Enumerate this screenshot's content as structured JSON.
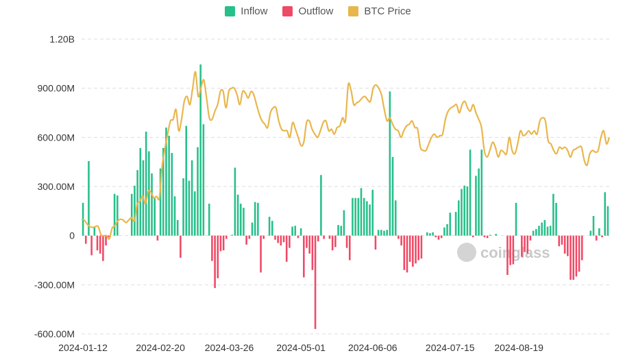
{
  "legend": [
    {
      "name": "Inflow",
      "color": "#27c08a"
    },
    {
      "name": "Outflow",
      "color": "#ef4a67"
    },
    {
      "name": "BTC Price",
      "color": "#e9b64c"
    }
  ],
  "watermark": "coinglass",
  "chart_data": {
    "type": "bar",
    "y_tick_labels": [
      "-600.00M",
      "-300.00M",
      "0",
      "300.00M",
      "600.00M",
      "900.00M",
      "1.20B"
    ],
    "ylim": [
      -600000000,
      1200000000
    ],
    "x_tick_labels": [
      "2024-01-12",
      "2024-02-20",
      "2024-03-26",
      "2024-05-01",
      "2024-06-06",
      "2024-07-15",
      "2024-08-19"
    ],
    "x_tick_index": [
      0,
      27,
      51,
      76,
      101,
      128,
      152
    ],
    "colors": {
      "inflow": "#27c08a",
      "outflow": "#ef4a67",
      "price": "#e9b64c",
      "grid": "#dddddd"
    },
    "grid": true,
    "legend_position": "top-center",
    "flow_values_millions": [
      200,
      -50,
      455,
      -120,
      50,
      -90,
      -110,
      -155,
      -60,
      -10,
      0,
      255,
      245,
      0,
      0,
      0,
      0,
      255,
      305,
      400,
      535,
      460,
      635,
      515,
      380,
      235,
      -30,
      410,
      535,
      660,
      610,
      505,
      240,
      95,
      -135,
      350,
      670,
      335,
      460,
      270,
      540,
      1045,
      680,
      0,
      195,
      -155,
      -320,
      -260,
      -95,
      -90,
      -20,
      0,
      5,
      415,
      250,
      195,
      170,
      -55,
      -20,
      80,
      205,
      200,
      -225,
      -20,
      0,
      115,
      90,
      -25,
      -45,
      -60,
      -40,
      -160,
      -75,
      55,
      60,
      -15,
      45,
      -255,
      -75,
      -110,
      -210,
      -570,
      -35,
      370,
      -20,
      0,
      -20,
      -90,
      -70,
      65,
      60,
      155,
      -75,
      -150,
      230,
      230,
      230,
      290,
      230,
      210,
      190,
      280,
      -85,
      35,
      35,
      30,
      35,
      880,
      480,
      215,
      -20,
      -60,
      -210,
      -225,
      -160,
      -190,
      -170,
      -150,
      -140,
      0,
      20,
      15,
      20,
      -10,
      -25,
      -15,
      50,
      70,
      140,
      0,
      145,
      215,
      285,
      305,
      300,
      525,
      -10,
      365,
      410,
      525,
      -10,
      -15,
      5,
      0,
      10,
      0,
      0,
      0,
      -240,
      -180,
      -175,
      200,
      0,
      -130,
      -100,
      -110,
      -30,
      30,
      40,
      60,
      80,
      95,
      55,
      60,
      255,
      200,
      -65,
      -55,
      -110,
      -125,
      -270,
      -270,
      -250,
      -220,
      -150,
      0,
      0,
      30,
      120,
      -30,
      45,
      -10,
      265,
      180
    ],
    "price_values_millions": [
      100,
      95,
      70,
      55,
      50,
      55,
      55,
      5,
      0,
      0,
      -20,
      45,
      60,
      90,
      100,
      95,
      80,
      95,
      110,
      90,
      190,
      210,
      240,
      195,
      270,
      265,
      230,
      240,
      230,
      420,
      530,
      620,
      700,
      710,
      770,
      640,
      710,
      820,
      850,
      800,
      900,
      1000,
      850,
      905,
      950,
      840,
      720,
      710,
      760,
      800,
      880,
      880,
      780,
      880,
      900,
      900,
      860,
      800,
      880,
      870,
      840,
      880,
      860,
      800,
      740,
      700,
      680,
      660,
      750,
      780,
      780,
      700,
      650,
      640,
      640,
      600,
      690,
      650,
      600,
      550,
      570,
      690,
      700,
      650,
      620,
      600,
      640,
      690,
      700,
      640,
      650,
      620,
      660,
      670,
      720,
      700,
      920,
      890,
      800,
      810,
      820,
      840,
      850,
      830,
      820,
      900,
      920,
      900,
      860,
      770,
      700,
      720,
      680,
      650,
      640,
      600,
      640,
      670,
      680,
      700,
      660,
      650,
      540,
      520,
      520,
      560,
      600,
      620,
      600,
      610,
      620,
      710,
      760,
      780,
      790,
      800,
      750,
      800,
      820,
      780,
      760,
      800,
      750,
      710,
      660,
      520,
      480,
      520,
      570,
      540,
      480,
      520,
      510,
      500,
      600,
      520,
      500,
      560,
      640,
      610,
      620,
      640,
      620,
      640,
      620,
      700,
      720,
      700,
      580,
      560,
      520,
      500,
      540,
      530,
      540,
      520,
      480,
      520,
      530,
      540,
      540,
      460,
      430,
      500,
      520,
      510,
      520,
      600,
      640,
      560,
      600
    ]
  }
}
